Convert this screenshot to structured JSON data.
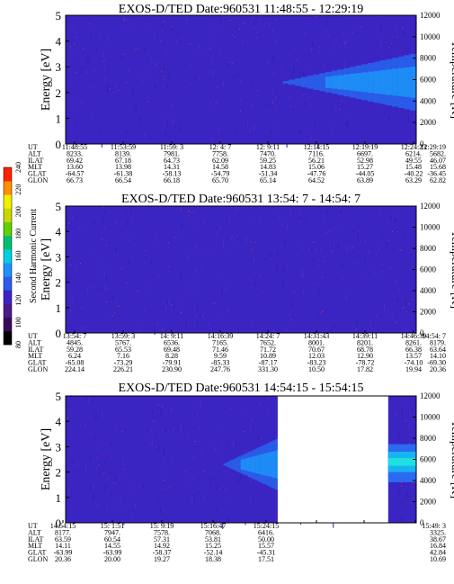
{
  "colorbar": {
    "title": "Second Harmonic Current",
    "ticks": [
      "80",
      "100",
      "120",
      "140",
      "160",
      "180",
      "200",
      "220",
      "240"
    ],
    "colors": [
      "#000000",
      "#3a0a5a",
      "#4a1a8a",
      "#3b22c8",
      "#2f5cf0",
      "#1e90ff",
      "#00d0e0",
      "#00c070",
      "#60d000",
      "#c8d800",
      "#f0f000",
      "#ff9000",
      "#ff2000"
    ]
  },
  "chart_data": [
    {
      "type": "heatmap",
      "title": "EXOS-D/TED   Date:960531   11:48:55 - 12:29:19",
      "ylabel": "Energy [eV]",
      "y2label": "Temperature [K]",
      "ylim": [
        0,
        5
      ],
      "y2lim": [
        0,
        12000
      ],
      "yticks": [
        "0",
        "1",
        "2",
        "3",
        "4",
        "5"
      ],
      "y2ticks": [
        "0",
        "2000",
        "4000",
        "6000",
        "8000",
        "10000",
        "12000"
      ],
      "rows": [
        {
          "label": "UT",
          "values": [
            "11:48:55",
            "11:53:59",
            "11:59: 3",
            "12: 4: 7",
            "12: 9:11",
            "12:14:15",
            "12:19:19",
            "12:24:23",
            "12:29:19"
          ]
        },
        {
          "label": "ALT",
          "values": [
            "8233.",
            "8139.",
            "7981.",
            "7758.",
            "7470.",
            "7116.",
            "6697.",
            "6214.",
            "5682."
          ]
        },
        {
          "label": "ILAT",
          "values": [
            "69.42",
            "67.18",
            "64.73",
            "62.09",
            "59.25",
            "56.21",
            "52.98",
            "49.55",
            "46.07"
          ]
        },
        {
          "label": "MLT",
          "values": [
            "13.60",
            "13.98",
            "14.31",
            "14.58",
            "14.83",
            "15.06",
            "15.27",
            "15.48",
            "15.68"
          ]
        },
        {
          "label": "GLAT",
          "values": [
            "-64.57",
            "-61.38",
            "-58.13",
            "-54.79",
            "-51.34",
            "-47.76",
            "-44.05",
            "-40.22",
            "-36.45"
          ]
        },
        {
          "label": "GLON",
          "values": [
            "66.73",
            "66.54",
            "66.18",
            "65.70",
            "65.14",
            "64.52",
            "63.89",
            "63.29",
            "62.82"
          ]
        }
      ],
      "blue_band": {
        "start_col_fraction": 0.62,
        "energy_center": 2.4,
        "energy_halfwidth_max": 1.1
      },
      "data_gap": null
    },
    {
      "type": "heatmap",
      "title": "EXOS-D/TED   Date:960531   13:54: 7 - 14:54: 7",
      "ylabel": "Energy [eV]",
      "y2label": "Temperature [K]",
      "ylim": [
        0,
        5
      ],
      "y2lim": [
        0,
        12000
      ],
      "yticks": [
        "0",
        "1",
        "2",
        "3",
        "4",
        "5"
      ],
      "y2ticks": [
        "0",
        "2000",
        "4000",
        "6000",
        "8000",
        "10000",
        "12000"
      ],
      "rows": [
        {
          "label": "UT",
          "values": [
            "13:54: 7",
            "13:59: 3",
            "14: 9:11",
            "14:16:39",
            "14:24: 7",
            "14:31:43",
            "14:39:11",
            "14:46:39",
            "14:54: 7"
          ]
        },
        {
          "label": "ALT",
          "values": [
            "4845.",
            "5767.",
            "6536.",
            "7165.",
            "7652.",
            "8001.",
            "8201.",
            "8261.",
            "8179."
          ]
        },
        {
          "label": "ILAT",
          "values": [
            "59.28",
            "65.53",
            "69.48",
            "71.46",
            "71.72",
            "70.67",
            "68.78",
            "66.38",
            "63.64"
          ]
        },
        {
          "label": "MLT",
          "values": [
            "6.24",
            "7.16",
            "8.28",
            "9.59",
            "10.89",
            "12.03",
            "12.90",
            "13.57",
            "14.10"
          ]
        },
        {
          "label": "GLAT",
          "values": [
            "-65.08",
            "-73.29",
            "-79.91",
            "-85.33",
            "-87.17",
            "-83.23",
            "-78.72",
            "-74.10",
            "-69.30"
          ]
        },
        {
          "label": "GLON",
          "values": [
            "224.14",
            "226.21",
            "230.90",
            "247.76",
            "331.30",
            "10.50",
            "17.82",
            "19.94",
            "20.36"
          ]
        }
      ],
      "blue_band": null,
      "data_gap": null
    },
    {
      "type": "heatmap",
      "title": "EXOS-D/TED   Date:960531   14:54:15 - 15:54:15",
      "ylabel": "Energy [eV]",
      "y2label": "Temperature [K]",
      "ylim": [
        0,
        5
      ],
      "y2lim": [
        0,
        12000
      ],
      "yticks": [
        "0",
        "1",
        "2",
        "3",
        "4",
        "5"
      ],
      "y2ticks": [
        "0",
        "2000",
        "4000",
        "6000",
        "8000",
        "10000",
        "12000"
      ],
      "rows": [
        {
          "label": "UT",
          "values": [
            "14:54:15",
            "15: 1:51",
            "15: 9:19",
            "15:16:47",
            "15:24:15",
            "",
            "",
            "",
            "15:49: 3"
          ]
        },
        {
          "label": "ALT",
          "values": [
            "8177.",
            "7947.",
            "7578.",
            "7068.",
            "6416.",
            "",
            "",
            "",
            "3325."
          ]
        },
        {
          "label": "ILAT",
          "values": [
            "63.59",
            "60.54",
            "57.31",
            "53.81",
            "50.00",
            "",
            "",
            "",
            "38.67"
          ]
        },
        {
          "label": "MLT",
          "values": [
            "14.11",
            "14.55",
            "14.92",
            "15.25",
            "15.57",
            "",
            "",
            "",
            "16.84"
          ]
        },
        {
          "label": "GLAT",
          "values": [
            "-63.99",
            "-63.99",
            "-58.37",
            "-52.14",
            "-45.31",
            "",
            "",
            "",
            "42.84"
          ]
        },
        {
          "label": "GLON",
          "values": [
            "20.36",
            "20.00",
            "19.27",
            "18.38",
            "17.51",
            "",
            "",
            "",
            "10.69"
          ]
        }
      ],
      "blue_band": {
        "start_col_fraction": 0.45,
        "energy_center": 2.3,
        "energy_halfwidth_max": 1.0
      },
      "data_gap": {
        "from_fraction": 0.605,
        "to_fraction": 0.92
      }
    }
  ]
}
